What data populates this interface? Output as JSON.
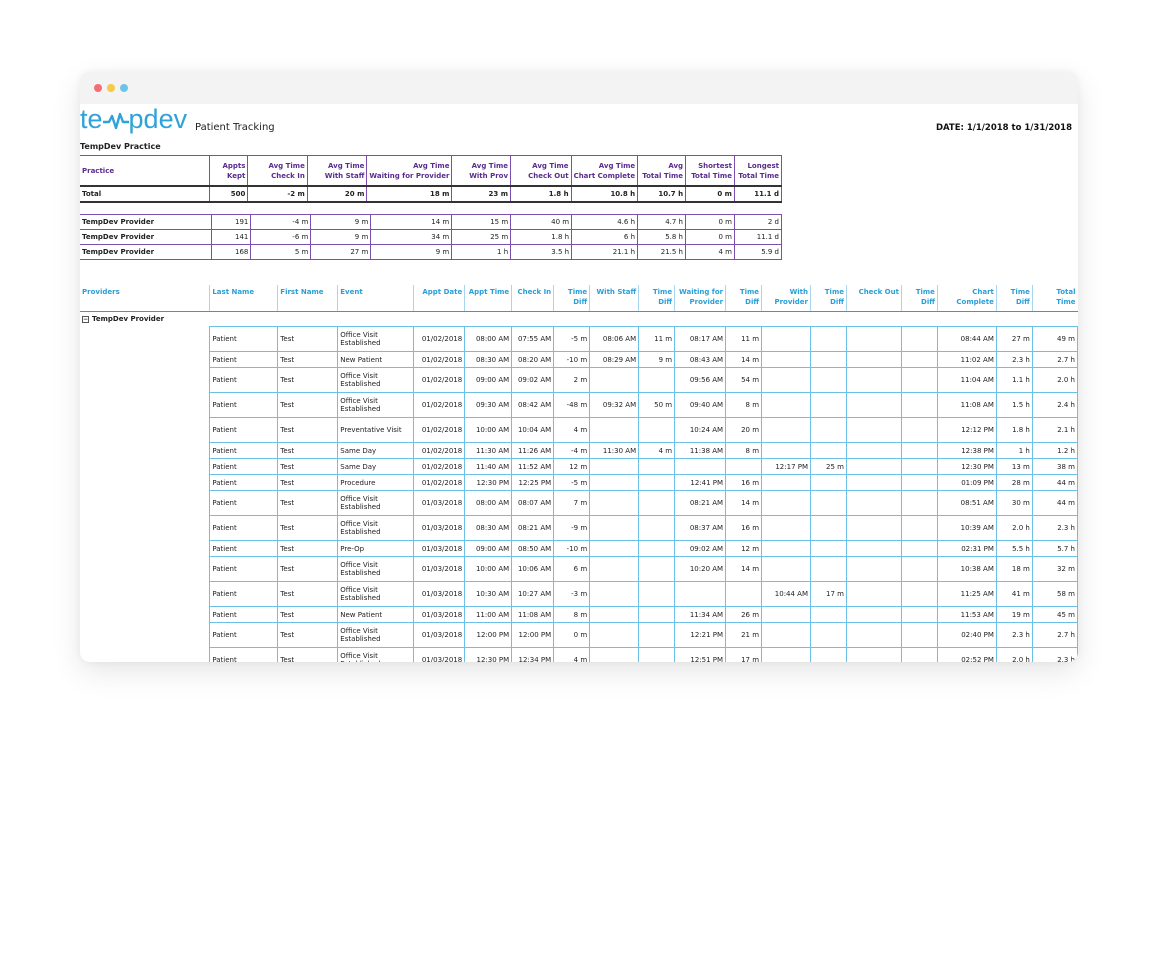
{
  "window": {
    "dots": [
      "#f76d75",
      "#f7c948",
      "#6cc5e8"
    ]
  },
  "report": {
    "logo_left": "te",
    "logo_right": "pdev",
    "title": "Patient Tracking",
    "date_range": "DATE: 1/1/2018 to 1/31/2018",
    "practice_name": "TempDev Practice"
  },
  "summary": {
    "headers": [
      [
        "Practice",
        ""
      ],
      [
        "Appts",
        "Kept"
      ],
      [
        "Avg Time",
        "Check In"
      ],
      [
        "Avg Time",
        "With Staff"
      ],
      [
        "Avg Time",
        "Waiting for Provider"
      ],
      [
        "Avg Time",
        "With Prov"
      ],
      [
        "Avg Time",
        "Check Out"
      ],
      [
        "Avg Time",
        "Chart Complete"
      ],
      [
        "Avg",
        "Total Time"
      ],
      [
        "Shortest",
        "Total Time"
      ],
      [
        "Longest",
        "Total Time"
      ]
    ],
    "total_row": [
      "Total",
      "500",
      "-2 m",
      "20 m",
      "18 m",
      "23 m",
      "1.8 h",
      "10.8 h",
      "10.7 h",
      "0 m",
      "11.1 d"
    ],
    "providers": [
      [
        "TempDev Provider",
        "191",
        "-4 m",
        "9 m",
        "14 m",
        "15 m",
        "40 m",
        "4.6 h",
        "4.7 h",
        "0 m",
        "2 d"
      ],
      [
        "TempDev Provider",
        "141",
        "-6 m",
        "9 m",
        "34 m",
        "25 m",
        "1.8 h",
        "6 h",
        "5.8 h",
        "0 m",
        "11.1 d"
      ],
      [
        "TempDev Provider",
        "168",
        "5 m",
        "27 m",
        "9 m",
        "1 h",
        "3.5 h",
        "21.1 h",
        "21.5 h",
        "4 m",
        "5.9 d"
      ]
    ]
  },
  "detail": {
    "headers": [
      [
        "Providers",
        ""
      ],
      [
        "Last Name",
        ""
      ],
      [
        "First Name",
        ""
      ],
      [
        "Event",
        ""
      ],
      [
        "Appt Date",
        ""
      ],
      [
        "Appt Time",
        ""
      ],
      [
        "Check In",
        ""
      ],
      [
        "Time",
        "Diff"
      ],
      [
        "With Staff",
        ""
      ],
      [
        "Time",
        "Diff"
      ],
      [
        "Waiting for",
        "Provider"
      ],
      [
        "Time",
        "Diff"
      ],
      [
        "With",
        "Provider"
      ],
      [
        "Time",
        "Diff"
      ],
      [
        "Check Out",
        ""
      ],
      [
        "Time",
        "Diff"
      ],
      [
        "Chart",
        "Complete"
      ],
      [
        "Time",
        "Diff"
      ],
      [
        "Total",
        "Time"
      ]
    ],
    "group_label": "TempDev Provider",
    "group_toggle": "−",
    "rows": [
      [
        "",
        "Patient",
        "Test",
        "Office Visit Established",
        "01/02/2018",
        "08:00 AM",
        "07:55 AM",
        "-5 m",
        "08:06 AM",
        "11 m",
        "08:17 AM",
        "11 m",
        "",
        "",
        "",
        "",
        "08:44 AM",
        "27 m",
        "49 m"
      ],
      [
        "",
        "Patient",
        "Test",
        "New Patient",
        "01/02/2018",
        "08:30 AM",
        "08:20 AM",
        "-10 m",
        "08:29 AM",
        "9 m",
        "08:43 AM",
        "14 m",
        "",
        "",
        "",
        "",
        "11:02 AM",
        "2.3 h",
        "2.7 h"
      ],
      [
        "",
        "Patient",
        "Test",
        "Office Visit Established",
        "01/02/2018",
        "09:00 AM",
        "09:02 AM",
        "2 m",
        "",
        "",
        "09:56 AM",
        "54 m",
        "",
        "",
        "",
        "",
        "11:04 AM",
        "1.1 h",
        "2.0 h"
      ],
      [
        "",
        "Patient",
        "Test",
        "Office Visit Established",
        "01/02/2018",
        "09:30 AM",
        "08:42 AM",
        "-48 m",
        "09:32 AM",
        "50 m",
        "09:40 AM",
        "8 m",
        "",
        "",
        "",
        "",
        "11:08 AM",
        "1.5 h",
        "2.4 h"
      ],
      [
        "",
        "Patient",
        "Test",
        "Preventative Visit",
        "01/02/2018",
        "10:00 AM",
        "10:04 AM",
        "4 m",
        "",
        "",
        "10:24 AM",
        "20 m",
        "",
        "",
        "",
        "",
        "12:12 PM",
        "1.8 h",
        "2.1 h"
      ],
      [
        "",
        "Patient",
        "Test",
        "Same Day",
        "01/02/2018",
        "11:30 AM",
        "11:26 AM",
        "-4 m",
        "11:30 AM",
        "4 m",
        "11:38 AM",
        "8 m",
        "",
        "",
        "",
        "",
        "12:38 PM",
        "1 h",
        "1.2 h"
      ],
      [
        "",
        "Patient",
        "Test",
        "Same Day",
        "01/02/2018",
        "11:40 AM",
        "11:52 AM",
        "12 m",
        "",
        "",
        "",
        "",
        "12:17 PM",
        "25 m",
        "",
        "",
        "12:30 PM",
        "13 m",
        "38 m"
      ],
      [
        "",
        "Patient",
        "Test",
        "Procedure",
        "01/02/2018",
        "12:30 PM",
        "12:25 PM",
        "-5 m",
        "",
        "",
        "12:41 PM",
        "16 m",
        "",
        "",
        "",
        "",
        "01:09 PM",
        "28 m",
        "44 m"
      ],
      [
        "",
        "Patient",
        "Test",
        "Office Visit Established",
        "01/03/2018",
        "08:00 AM",
        "08:07 AM",
        "7 m",
        "",
        "",
        "08:21 AM",
        "14 m",
        "",
        "",
        "",
        "",
        "08:51 AM",
        "30 m",
        "44 m"
      ],
      [
        "",
        "Patient",
        "Test",
        "Office Visit Established",
        "01/03/2018",
        "08:30 AM",
        "08:21 AM",
        "-9 m",
        "",
        "",
        "08:37 AM",
        "16 m",
        "",
        "",
        "",
        "",
        "10:39 AM",
        "2.0 h",
        "2.3 h"
      ],
      [
        "",
        "Patient",
        "Test",
        "Pre-Op",
        "01/03/2018",
        "09:00 AM",
        "08:50 AM",
        "-10 m",
        "",
        "",
        "09:02 AM",
        "12 m",
        "",
        "",
        "",
        "",
        "02:31 PM",
        "5.5 h",
        "5.7 h"
      ],
      [
        "",
        "Patient",
        "Test",
        "Office Visit Established",
        "01/03/2018",
        "10:00 AM",
        "10:06 AM",
        "6 m",
        "",
        "",
        "10:20 AM",
        "14 m",
        "",
        "",
        "",
        "",
        "10:38 AM",
        "18 m",
        "32 m"
      ],
      [
        "",
        "Patient",
        "Test",
        "Office Visit Established",
        "01/03/2018",
        "10:30 AM",
        "10:27 AM",
        "-3 m",
        "",
        "",
        "",
        "",
        "10:44 AM",
        "17 m",
        "",
        "",
        "11:25 AM",
        "41 m",
        "58 m"
      ],
      [
        "",
        "Patient",
        "Test",
        "New Patient",
        "01/03/2018",
        "11:00 AM",
        "11:08 AM",
        "8 m",
        "",
        "",
        "11:34 AM",
        "26 m",
        "",
        "",
        "",
        "",
        "11:53 AM",
        "19 m",
        "45 m"
      ],
      [
        "",
        "Patient",
        "Test",
        "Office Visit Established",
        "01/03/2018",
        "12:00 PM",
        "12:00 PM",
        "0 m",
        "",
        "",
        "12:21 PM",
        "21 m",
        "",
        "",
        "",
        "",
        "02:40 PM",
        "2.3 h",
        "2.7 h"
      ],
      [
        "",
        "Patient",
        "Test",
        "Office Visit Established",
        "01/03/2018",
        "12:30 PM",
        "12:34 PM",
        "4 m",
        "",
        "",
        "12:51 PM",
        "17 m",
        "",
        "",
        "",
        "",
        "02:52 PM",
        "2.0 h",
        "2.3 h"
      ]
    ]
  }
}
